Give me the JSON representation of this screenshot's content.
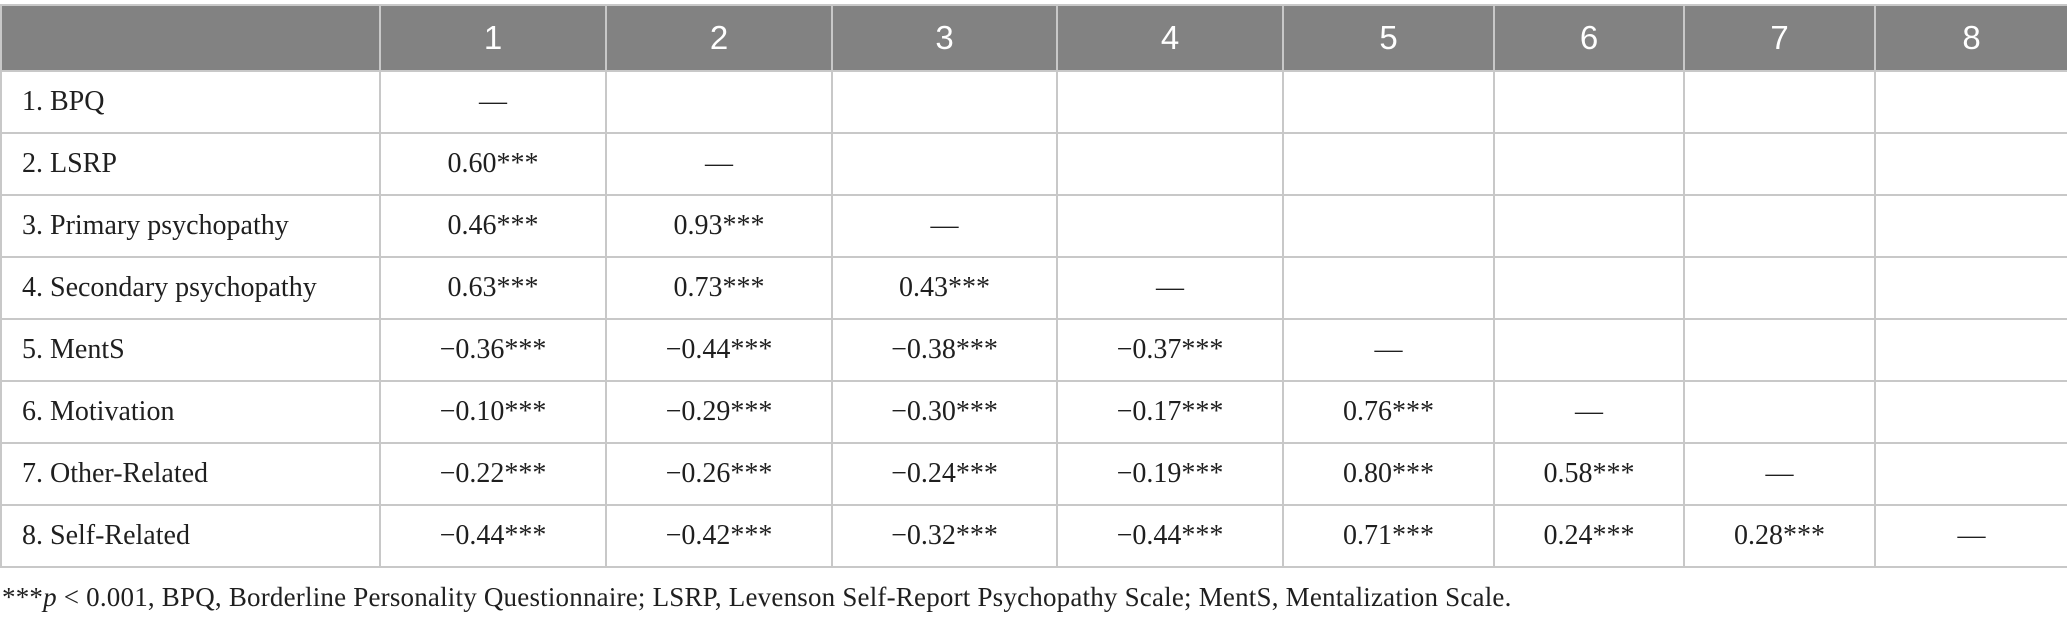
{
  "table": {
    "corner_label": "",
    "column_headers": [
      "1",
      "2",
      "3",
      "4",
      "5",
      "6",
      "7",
      "8"
    ],
    "rows": [
      {
        "label": "1. BPQ",
        "values": [
          "—",
          "",
          "",
          "",
          "",
          "",
          "",
          ""
        ]
      },
      {
        "label": "2. LSRP",
        "values": [
          "0.60***",
          "—",
          "",
          "",
          "",
          "",
          "",
          ""
        ]
      },
      {
        "label": "3. Primary psychopathy",
        "values": [
          "0.46***",
          "0.93***",
          "—",
          "",
          "",
          "",
          "",
          ""
        ]
      },
      {
        "label": "4. Secondary psychopathy",
        "values": [
          "0.63***",
          "0.73***",
          "0.43***",
          "—",
          "",
          "",
          "",
          ""
        ]
      },
      {
        "label": "5. MentS",
        "values": [
          "−0.36***",
          "−0.44***",
          "−0.38***",
          "−0.37***",
          "—",
          "",
          "",
          ""
        ]
      },
      {
        "label": "6. Motivation",
        "values": [
          "−0.10***",
          "−0.29***",
          "−0.30***",
          "−0.17***",
          "0.76***",
          "—",
          "",
          ""
        ]
      },
      {
        "label": "7. Other-Related",
        "values": [
          "−0.22***",
          "−0.26***",
          "−0.24***",
          "−0.19***",
          "0.80***",
          "0.58***",
          "—",
          ""
        ]
      },
      {
        "label": "8. Self-Related",
        "values": [
          "−0.44***",
          "−0.42***",
          "−0.32***",
          "−0.44***",
          "0.71***",
          "0.24***",
          "0.28***",
          "—"
        ]
      }
    ]
  },
  "footnote": {
    "stars": "***",
    "p_symbol": "p",
    "rest": " < 0.001, BPQ, Borderline Personality Questionnaire; LSRP, Levenson Self-Report Psychopathy Scale; MentS, Mentalization Scale."
  },
  "colors": {
    "header_bg": "#828282",
    "header_text": "#ffffff",
    "grid_line": "#c8c8c8",
    "body_text": "#1f1f1f"
  }
}
